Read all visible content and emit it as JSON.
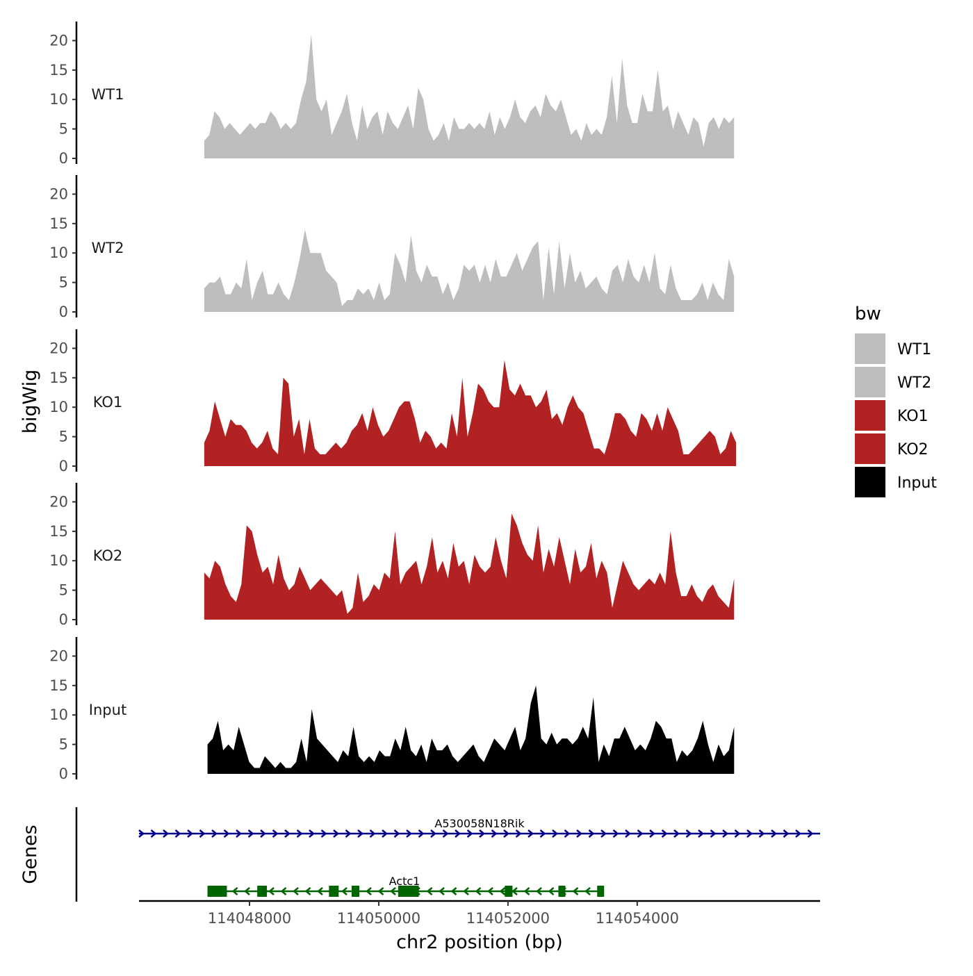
{
  "chart_data": {
    "type": "area",
    "y_axis_title": "bigWig",
    "x_axis_title": "chr2 position (bp)",
    "ylim": [
      0,
      23
    ],
    "y_ticks": [
      0,
      5,
      10,
      15,
      20
    ],
    "xlim": [
      114046290,
      114056830
    ],
    "x_ticks": [
      114048000,
      114050000,
      114052000,
      114054000
    ],
    "x_tick_labels": [
      "114048000",
      "114050000",
      "114052000",
      "114054000"
    ],
    "legend": {
      "title": "bw",
      "items": [
        {
          "label": "WT1",
          "color": "#bebebe"
        },
        {
          "label": "WT2",
          "color": "#bebebe"
        },
        {
          "label": "KO1",
          "color": "#b22222"
        },
        {
          "label": "KO2",
          "color": "#b22222"
        },
        {
          "label": "Input",
          "color": "#000000"
        }
      ]
    },
    "tracks": [
      {
        "name": "WT1",
        "color": "#bebebe",
        "x_start": 114047300,
        "x_end": 114055500,
        "values": [
          3,
          4,
          8,
          7,
          5,
          6,
          5,
          4,
          5,
          6,
          5,
          6,
          6,
          8,
          7,
          5,
          6,
          5,
          6,
          10,
          13,
          21,
          10,
          8,
          10,
          4,
          6,
          8,
          11,
          6,
          3,
          9,
          5,
          7,
          8,
          4,
          8,
          6,
          5,
          7,
          9,
          5,
          12,
          10,
          5,
          3,
          4,
          6,
          3,
          7,
          5,
          5,
          6,
          5,
          6,
          5,
          8,
          4,
          7,
          5,
          7,
          10,
          7,
          6,
          8,
          9,
          7,
          11,
          9,
          8,
          10,
          7,
          4,
          5,
          3,
          6,
          4,
          5,
          4,
          7,
          14,
          6,
          17,
          9,
          6,
          6,
          11,
          8,
          8,
          15,
          8,
          9,
          5,
          8,
          6,
          4,
          7,
          6,
          2,
          6,
          7,
          5,
          7,
          6,
          7
        ]
      },
      {
        "name": "WT2",
        "color": "#bebebe",
        "x_start": 114047300,
        "x_end": 114055500,
        "values": [
          4,
          5,
          5,
          6,
          3,
          3,
          5,
          4,
          9,
          2,
          5,
          7,
          3,
          3,
          5,
          3,
          2,
          5,
          9,
          14,
          10,
          10,
          10,
          7,
          6,
          5,
          1,
          2,
          2,
          4,
          3,
          4,
          2,
          5,
          2,
          3,
          10,
          8,
          5,
          13,
          7,
          5,
          8,
          6,
          6,
          3,
          5,
          2,
          4,
          8,
          7,
          8,
          5,
          8,
          5,
          9,
          6,
          6,
          8,
          10,
          7,
          9,
          11,
          12,
          2,
          11,
          3,
          12,
          4,
          10,
          5,
          7,
          4,
          5,
          6,
          4,
          3,
          7,
          8,
          5,
          9,
          6,
          5,
          8,
          5,
          10,
          4,
          3,
          8,
          4,
          2,
          2,
          2,
          3,
          5,
          2,
          5,
          3,
          2,
          9,
          6
        ]
      },
      {
        "name": "KO1",
        "color": "#b22222",
        "x_start": 114047300,
        "x_end": 114055530,
        "values": [
          4,
          6,
          11,
          8,
          5,
          8,
          7,
          7,
          6,
          4,
          3,
          4,
          6,
          3,
          2,
          15,
          14,
          5,
          8,
          2,
          8,
          3,
          2,
          2,
          3,
          4,
          3,
          4,
          6,
          7,
          9,
          6,
          10,
          7,
          5,
          6,
          8,
          10,
          11,
          11,
          8,
          4,
          6,
          5,
          3,
          4,
          3,
          9,
          5,
          15,
          5,
          9,
          14,
          13,
          11,
          10,
          10,
          18,
          13,
          12,
          14,
          12,
          12,
          10,
          11,
          13,
          8,
          9,
          7,
          10,
          12,
          10,
          9,
          6,
          3,
          3,
          2,
          5,
          9,
          9,
          8,
          6,
          5,
          9,
          8,
          6,
          9,
          6,
          10,
          8,
          6,
          2,
          2,
          3,
          4,
          5,
          6,
          5,
          2,
          3,
          6,
          4
        ]
      },
      {
        "name": "KO2",
        "color": "#b22222",
        "x_start": 114047300,
        "x_end": 114055500,
        "values": [
          8,
          7,
          10,
          9,
          6,
          4,
          3,
          6,
          16,
          15,
          11,
          8,
          9,
          6,
          11,
          7,
          5,
          6,
          9,
          7,
          5,
          6,
          7,
          6,
          5,
          4,
          5,
          1,
          2,
          8,
          3,
          4,
          6,
          5,
          8,
          7,
          15,
          6,
          8,
          9,
          10,
          6,
          9,
          14,
          8,
          10,
          7,
          13,
          9,
          10,
          6,
          11,
          9,
          8,
          9,
          14,
          10,
          7,
          18,
          16,
          13,
          11,
          10,
          16,
          8,
          12,
          9,
          14,
          10,
          6,
          12,
          8,
          9,
          13,
          7,
          10,
          8,
          2,
          6,
          10,
          8,
          6,
          5,
          6,
          7,
          6,
          8,
          6,
          15,
          8,
          4,
          4,
          6,
          4,
          3,
          5,
          6,
          4,
          3,
          2,
          7
        ]
      },
      {
        "name": "Input",
        "color": "#000000",
        "x_start": 114047350,
        "x_end": 114055500,
        "values": [
          5,
          6,
          9,
          4,
          5,
          4,
          8,
          5,
          2,
          1,
          1,
          3,
          2,
          1,
          2,
          1,
          1,
          2,
          6,
          2,
          11,
          6,
          5,
          4,
          3,
          2,
          4,
          3,
          8,
          3,
          2,
          3,
          2,
          4,
          3,
          3,
          6,
          4,
          8,
          4,
          3,
          5,
          2,
          6,
          4,
          4,
          5,
          3,
          2,
          3,
          4,
          5,
          3,
          2,
          4,
          6,
          5,
          4,
          6,
          8,
          4,
          6,
          12,
          15,
          6,
          5,
          7,
          5,
          6,
          6,
          5,
          6,
          8,
          6,
          13,
          2,
          5,
          3,
          6,
          6,
          8,
          6,
          4,
          5,
          4,
          6,
          9,
          8,
          6,
          6,
          2,
          4,
          3,
          4,
          6,
          9,
          5,
          2,
          5,
          3,
          4,
          8
        ]
      }
    ],
    "genes_label": "Genes",
    "genes": [
      {
        "name": "A530058N18Rik",
        "strand": "+",
        "color": "#00008b",
        "start": 114046290,
        "end": 114056830,
        "exons": []
      },
      {
        "name": "Actc1",
        "strand": "-",
        "color": "#006400",
        "start": 114047350,
        "end": 114053450,
        "exons": [
          [
            114047350,
            114047650
          ],
          [
            114048120,
            114048270
          ],
          [
            114049230,
            114049380
          ],
          [
            114049580,
            114049700
          ],
          [
            114050300,
            114050620
          ],
          [
            114051950,
            114052070
          ],
          [
            114052780,
            114052880
          ],
          [
            114053380,
            114053480
          ]
        ]
      }
    ]
  }
}
